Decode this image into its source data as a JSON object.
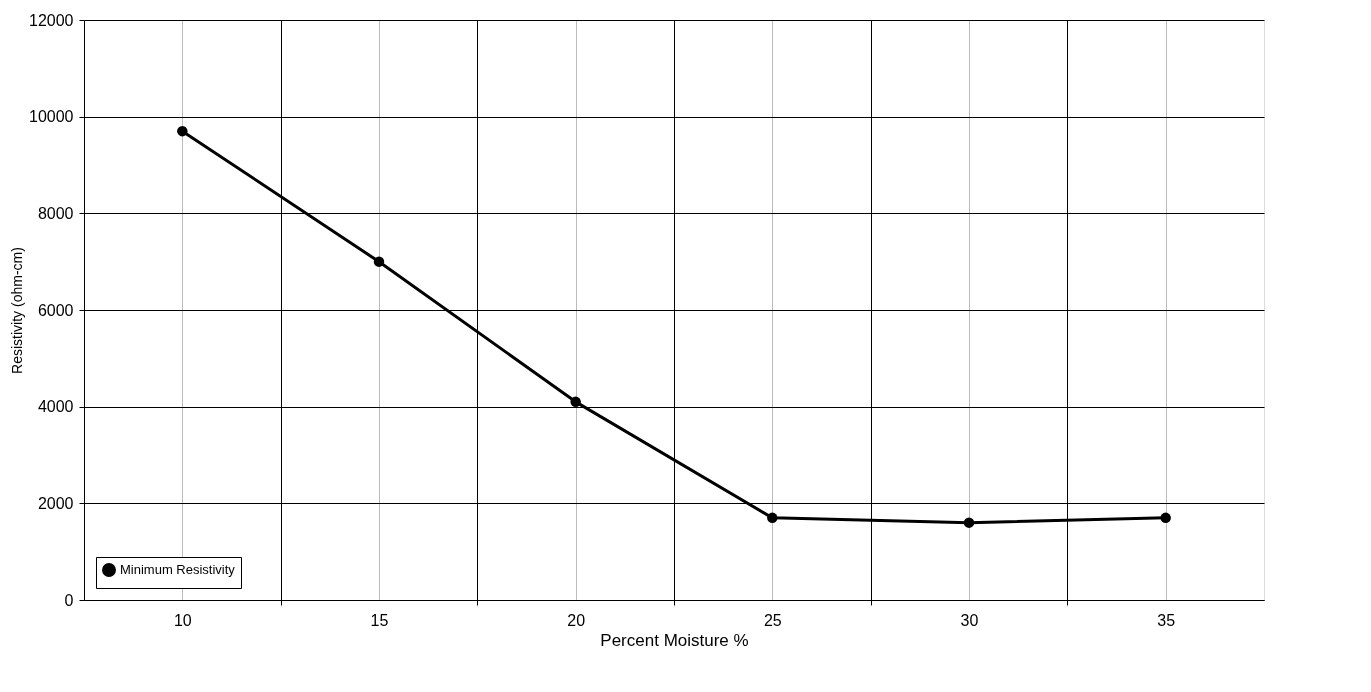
{
  "chart_data": {
    "type": "line",
    "xlabel": "Percent Moisture %",
    "ylabel": "Resistivity (ohm-cm)",
    "categories": [
      "10",
      "15",
      "20",
      "25",
      "30",
      "35"
    ],
    "series": [
      {
        "name": "Minimum Resistivity",
        "color": "#000000",
        "values": [
          9700,
          7000,
          4100,
          1700,
          1600,
          1700
        ]
      }
    ],
    "ylim": [
      0,
      12000
    ],
    "yticks": [
      0,
      2000,
      4000,
      6000,
      8000,
      10000,
      12000
    ],
    "grid": true,
    "legend": "bottom left",
    "marker": "circle",
    "line_style": "solid"
  }
}
